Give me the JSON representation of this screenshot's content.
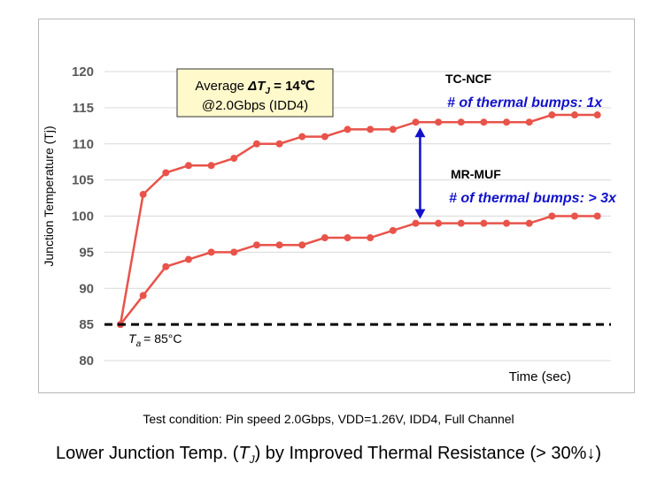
{
  "chart_data": {
    "type": "line",
    "ylabel": "Junction Temperature (Tj)",
    "xlabel": "Time (sec)",
    "ylim": [
      80,
      120
    ],
    "y_ticks": [
      120,
      115,
      110,
      105,
      100,
      95,
      90,
      85,
      80
    ],
    "grid": true,
    "series": [
      {
        "name": "TC-NCF",
        "values": [
          85,
          103,
          106,
          107,
          107,
          108,
          110,
          110,
          111,
          111,
          112,
          112,
          112,
          113,
          113,
          113,
          113,
          113,
          113,
          114,
          114,
          114
        ],
        "color": "#e8534a"
      },
      {
        "name": "MR-MUF",
        "values": [
          85,
          89,
          93,
          94,
          95,
          95,
          96,
          96,
          96,
          97,
          97,
          97,
          98,
          99,
          99,
          99,
          99,
          99,
          99,
          100,
          100,
          100
        ],
        "color": "#e8534a"
      }
    ],
    "annotations": {
      "box_line1_prefix": "Average ",
      "box_delta": "ΔT",
      "box_sub": "J",
      "box_line1_suffix": " = 14℃",
      "box_line2": "@2.0Gbps (IDD4)",
      "tc_ncf_label": "TC-NCF",
      "tc_ncf_bumps": "# of thermal bumps: 1x",
      "mr_muf_label": "MR-MUF",
      "mr_muf_bumps": "# of thermal bumps: > 3x",
      "ta_main": "T",
      "ta_sub": "a",
      "ta_value": "= 85°C",
      "reference_value": 85
    }
  },
  "footnote": "Test condition: Pin speed 2.0Gbps, VDD=1.26V, IDD4, Full Channel",
  "bottom_title": {
    "prefix": "Lower Junction Temp. (",
    "t": "T",
    "sub": "J",
    "suffix": ") by Improved Thermal Resistance (> 30%↓)"
  },
  "colors": {
    "series": "#e8534a",
    "arrow": "#1111cc",
    "box_fill": "#fff9cc",
    "grid": "#d9d9d9"
  }
}
